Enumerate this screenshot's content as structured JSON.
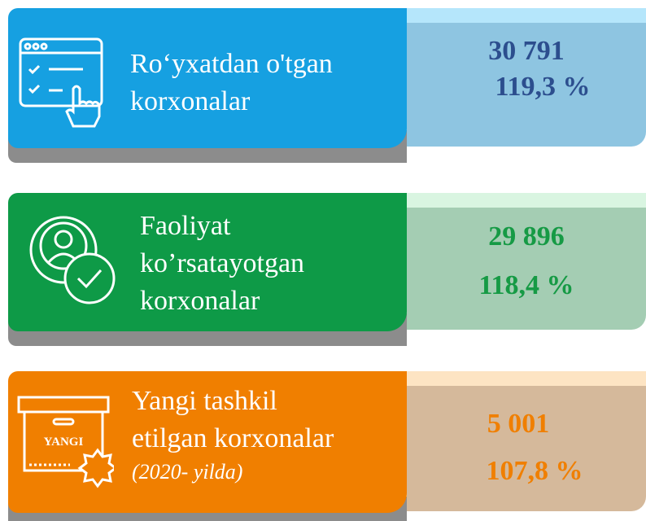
{
  "cards": [
    {
      "label_lines": [
        "Ro‘yxatdan o'tgan",
        "korxonalar"
      ],
      "value": "30 791",
      "percent": "119,3 %"
    },
    {
      "label_lines": [
        "Faoliyat",
        "ko’rsatayotgan",
        "korxonalar"
      ],
      "value": "29 896",
      "percent": "118,4 %"
    },
    {
      "label_lines": [
        "Yangi tashkil",
        "etilgan korxonalar"
      ],
      "note": "(2020- yilda)",
      "icon_text": "YANGI",
      "value": "5 001",
      "percent": "107,8 %"
    }
  ]
}
